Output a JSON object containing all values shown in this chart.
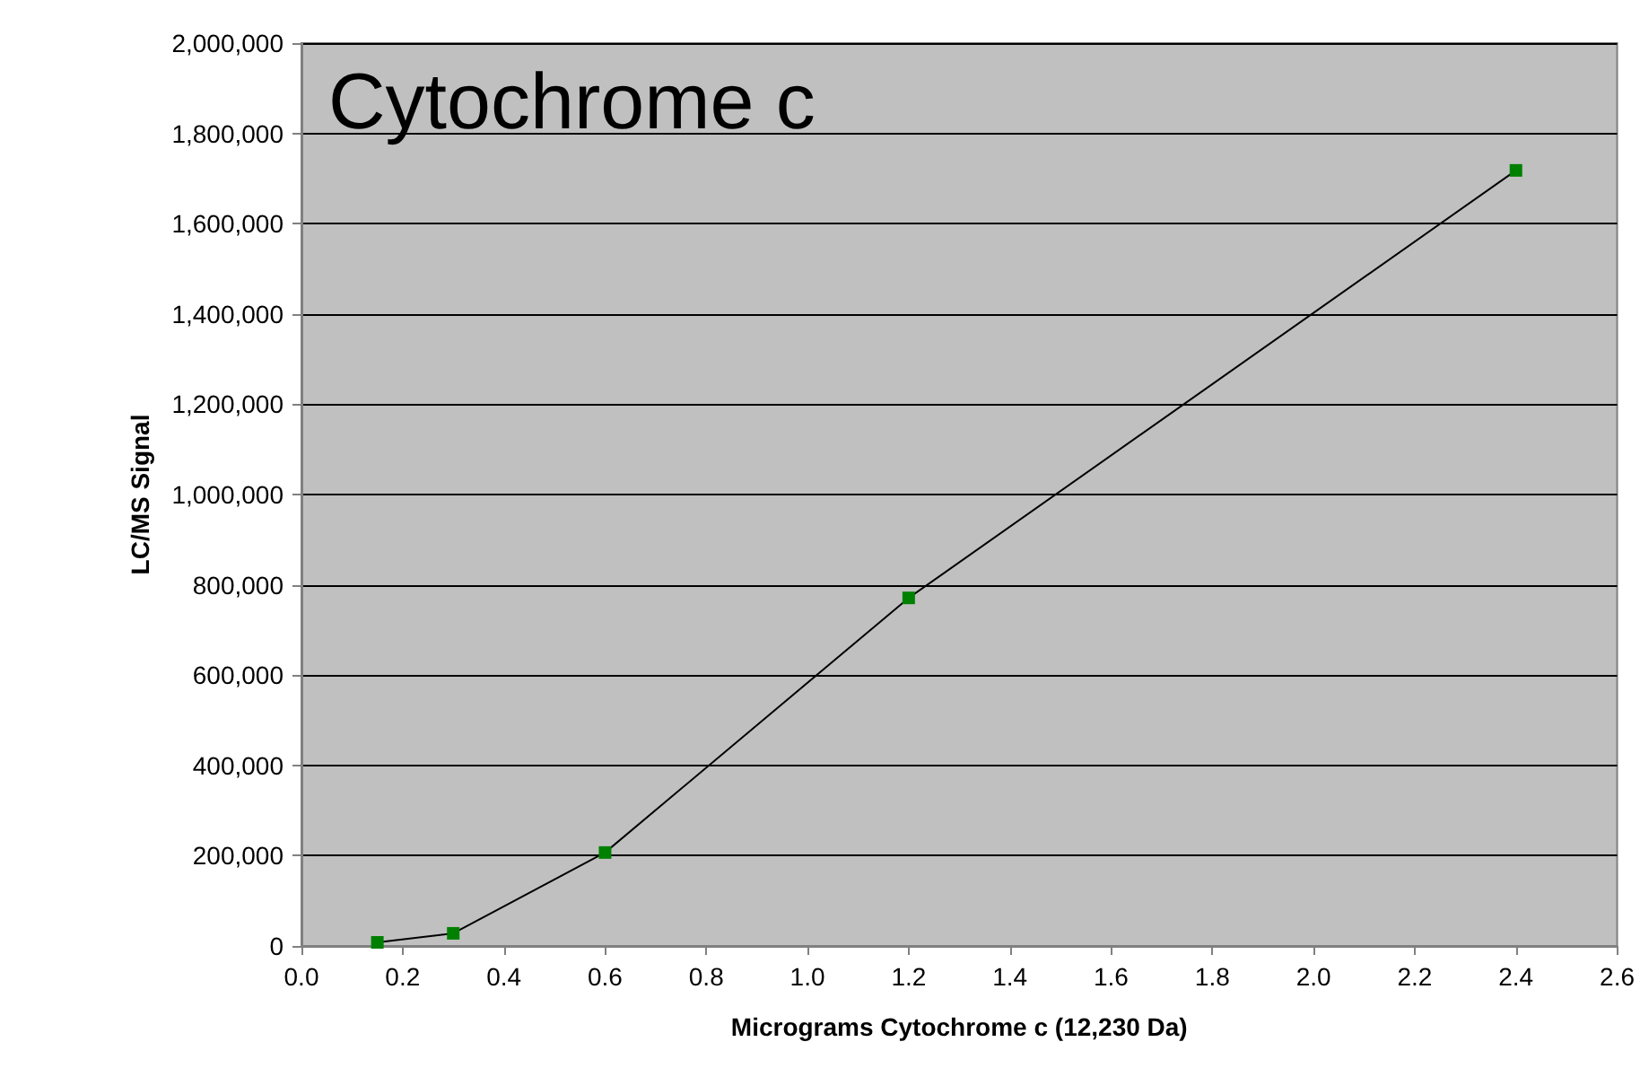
{
  "chart_data": {
    "type": "line",
    "title": "Cytochrome c",
    "xlabel": "Micrograms Cytochrome c (12,230 Da)",
    "ylabel": "LC/MS Signal",
    "x": [
      0.15,
      0.3,
      0.6,
      1.2,
      2.4
    ],
    "series": [
      {
        "color": "#008000",
        "values": [
          8000,
          28000,
          207000,
          771000,
          1718000
        ]
      }
    ],
    "xlim": [
      0,
      2.6
    ],
    "xticks": [
      {
        "value": 0,
        "label": "0.0"
      },
      {
        "value": 0.2,
        "label": "0.2"
      },
      {
        "value": 0.4,
        "label": "0.4"
      },
      {
        "value": 0.6,
        "label": "0.6"
      },
      {
        "value": 0.8,
        "label": "0.8"
      },
      {
        "value": 1,
        "label": "1.0"
      },
      {
        "value": 1.2,
        "label": "1.2"
      },
      {
        "value": 1.4,
        "label": "1.4"
      },
      {
        "value": 1.6,
        "label": "1.6"
      },
      {
        "value": 1.8,
        "label": "1.8"
      },
      {
        "value": 2,
        "label": "2.0"
      },
      {
        "value": 2.2,
        "label": "2.2"
      },
      {
        "value": 2.4,
        "label": "2.4"
      },
      {
        "value": 2.6,
        "label": "2.6"
      }
    ],
    "ylim": [
      0,
      2000000
    ],
    "yticks": [
      0,
      {
        "value": 200000,
        "label": "200,000"
      },
      {
        "value": 400000,
        "label": "400,000"
      },
      {
        "value": 600000,
        "label": "600,000"
      },
      {
        "value": 800000,
        "label": "800,000"
      },
      {
        "value": 1000000,
        "label": "1,000,000"
      },
      {
        "value": 1200000,
        "label": "1,200,000"
      },
      {
        "value": 1400000,
        "label": "1,400,000"
      },
      {
        "value": 1600000,
        "label": "1,600,000"
      },
      {
        "value": 1800000,
        "label": "1,800,000"
      },
      {
        "value": 2000000,
        "label": "2,000,000"
      }
    ],
    "grid": "y",
    "marker": "square",
    "line_style": "solid"
  }
}
